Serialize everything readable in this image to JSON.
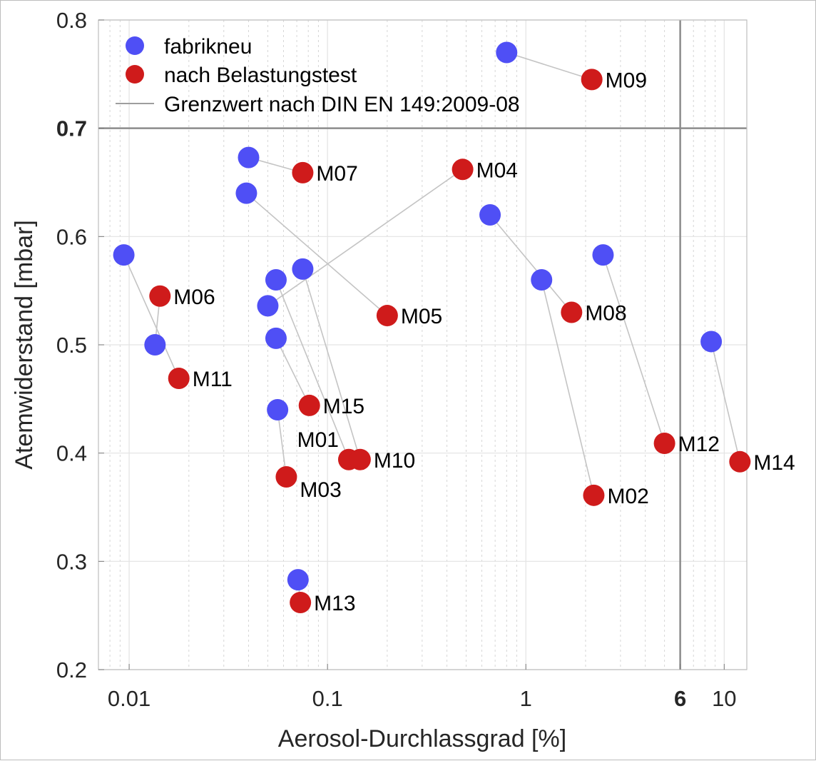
{
  "chart_data": {
    "type": "scatter",
    "xlabel": "Aerosol-Durchlassgrad [%]",
    "ylabel": "Atemwiderstand [mbar]",
    "x_scale": "log",
    "xlim": [
      0.007,
      13
    ],
    "ylim": [
      0.2,
      0.8
    ],
    "x_ticks": [
      {
        "value": 0.01,
        "label": "0.01"
      },
      {
        "value": 0.1,
        "label": "0.1"
      },
      {
        "value": 1,
        "label": "1"
      },
      {
        "value": 6,
        "label": "6",
        "bold": true
      },
      {
        "value": 10,
        "label": "10"
      }
    ],
    "y_ticks": [
      {
        "value": 0.2,
        "label": "0.2"
      },
      {
        "value": 0.3,
        "label": "0.3"
      },
      {
        "value": 0.4,
        "label": "0.4"
      },
      {
        "value": 0.5,
        "label": "0.5"
      },
      {
        "value": 0.6,
        "label": "0.6"
      },
      {
        "value": 0.7,
        "label": "0.7",
        "bold": true
      },
      {
        "value": 0.8,
        "label": "0.8"
      }
    ],
    "grid": true,
    "legend_position": "top-left",
    "limit_lines": {
      "x": 6,
      "y": 0.7,
      "color": "#8c8c8c"
    },
    "series": [
      {
        "name": "fabrikneu",
        "color": "#4f4ff5"
      },
      {
        "name": "nach Belastungstest",
        "color": "#cf1b1b"
      },
      {
        "name": "Grenzwert nach DIN EN 149:2009-08",
        "color": "#9e9e9e",
        "kind": "line"
      }
    ],
    "masks": [
      {
        "id": "M01",
        "new": [
          0.055,
          0.56
        ],
        "tested": [
          0.128,
          0.394
        ],
        "label_pos": "above-left"
      },
      {
        "id": "M02",
        "new": [
          1.2,
          0.56
        ],
        "tested": [
          2.2,
          0.361
        ],
        "label_pos": "right"
      },
      {
        "id": "M03",
        "new": [
          0.056,
          0.44
        ],
        "tested": [
          0.062,
          0.378
        ],
        "label_pos": "below-right"
      },
      {
        "id": "M04",
        "new": [
          0.05,
          0.536
        ],
        "tested": [
          0.48,
          0.662
        ],
        "label_pos": "right"
      },
      {
        "id": "M05",
        "new": [
          0.039,
          0.64
        ],
        "tested": [
          0.2,
          0.527
        ],
        "label_pos": "right"
      },
      {
        "id": "M06",
        "new": [
          0.0135,
          0.5
        ],
        "tested": [
          0.0143,
          0.545
        ],
        "label_pos": "right"
      },
      {
        "id": "M07",
        "new": [
          0.04,
          0.673
        ],
        "tested": [
          0.075,
          0.659
        ],
        "label_pos": "right"
      },
      {
        "id": "M08",
        "new": [
          0.66,
          0.62
        ],
        "tested": [
          1.7,
          0.53
        ],
        "label_pos": "right"
      },
      {
        "id": "M09",
        "new": [
          0.8,
          0.77
        ],
        "tested": [
          2.15,
          0.745
        ],
        "label_pos": "right"
      },
      {
        "id": "M10",
        "new": [
          0.075,
          0.57
        ],
        "tested": [
          0.146,
          0.394
        ],
        "label_pos": "right"
      },
      {
        "id": "M11",
        "new": [
          0.0094,
          0.583
        ],
        "tested": [
          0.0178,
          0.469
        ],
        "label_pos": "right"
      },
      {
        "id": "M12",
        "new": [
          2.45,
          0.583
        ],
        "tested": [
          5.0,
          0.409
        ],
        "label_pos": "right"
      },
      {
        "id": "M13",
        "new": [
          0.071,
          0.283
        ],
        "tested": [
          0.073,
          0.262
        ],
        "label_pos": "right"
      },
      {
        "id": "M14",
        "new": [
          8.6,
          0.503
        ],
        "tested": [
          12.0,
          0.392
        ],
        "label_pos": "right"
      },
      {
        "id": "M15",
        "new": [
          0.055,
          0.506
        ],
        "tested": [
          0.081,
          0.444
        ],
        "label_pos": "right"
      }
    ]
  }
}
